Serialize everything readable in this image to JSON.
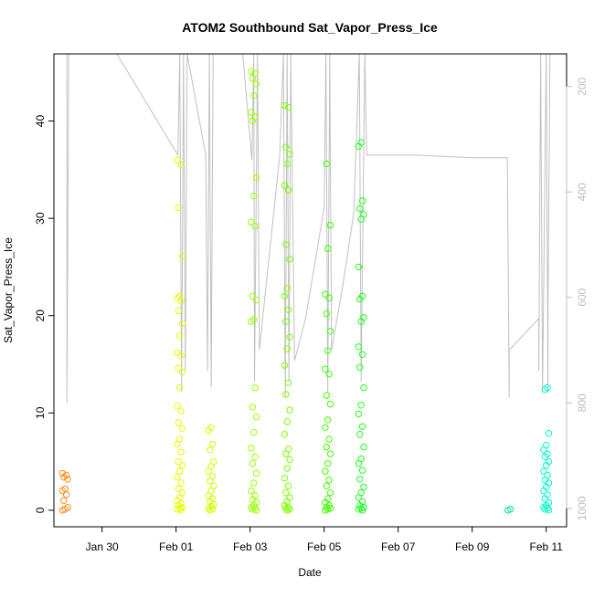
{
  "chart_data": {
    "type": "scatter",
    "title": "ATOM2 Southbound Sat_Vapor_Press_Ice",
    "xlabel": "Date",
    "ylabel": "Sat_Vapor_Press_Ice",
    "x_ticks": [
      "Jan 30",
      "Feb 01",
      "Feb 03",
      "Feb 05",
      "Feb 07",
      "Feb 09",
      "Feb 11"
    ],
    "x_tick_days": [
      30,
      32,
      34,
      36,
      38,
      40,
      42
    ],
    "xlim_days": [
      28.7,
      42.55
    ],
    "y_ticks": [
      0,
      10,
      20,
      30,
      40
    ],
    "ylim": [
      -1.7,
      46.9
    ],
    "right_axis": {
      "ticks": [
        200,
        400,
        600,
        800,
        1000
      ],
      "lim": [
        1035,
        138
      ],
      "color": "#bdbdbd"
    },
    "grid": false,
    "legend": "none",
    "clusters": [
      {
        "day": 29.0,
        "color": "#ff8c1a",
        "values": [
          0,
          0.1,
          0.3,
          1.0,
          1.6,
          2.0,
          2.2,
          3.2,
          3.4,
          3.6,
          3.8
        ]
      },
      {
        "day": 32.1,
        "color": "#e6ff00",
        "values": [
          0,
          0.1,
          0.2,
          0.3,
          0.5,
          0.7,
          1.0,
          1.3,
          1.8,
          2.2,
          2.8,
          3.4,
          4.0,
          4.6,
          5.0,
          6.0,
          6.8,
          7.3,
          8.4,
          9.0,
          10.2,
          10.7,
          12.6,
          14.2,
          14.6,
          15.9,
          16.2,
          17.9,
          19.2,
          20.5,
          21.5,
          21.8,
          22.0,
          26.1,
          31.1,
          35.5,
          36.0
        ]
      },
      {
        "day": 32.95,
        "color": "#d4ff00",
        "values": [
          0,
          0.1,
          0.2,
          0.4,
          0.6,
          0.9,
          1.2,
          1.5,
          2.0,
          2.5,
          3.0,
          3.5,
          4.0,
          4.5,
          5.0,
          6.2,
          6.8,
          8.2,
          8.5
        ]
      },
      {
        "day": 34.1,
        "color": "#9aff00",
        "values": [
          0,
          0.1,
          0.2,
          0.3,
          0.5,
          0.8,
          1.1,
          1.5,
          2.0,
          2.8,
          3.8,
          4.8,
          5.5,
          6.4,
          8.0,
          9.6,
          10.6,
          12.6,
          19.4,
          19.6,
          21.6,
          22.0,
          29.2,
          29.6,
          32.3,
          34.2,
          40.0,
          40.4,
          40.9,
          42.6,
          43.8,
          44.4,
          44.9,
          45.1
        ]
      },
      {
        "day": 35.0,
        "color": "#7aff00",
        "values": [
          0,
          0.1,
          0.2,
          0.3,
          0.5,
          0.9,
          1.3,
          1.8,
          2.5,
          3.3,
          4.3,
          5.2,
          5.8,
          6.3,
          7.8,
          9.1,
          10.3,
          11.9,
          13.1,
          14.9,
          16.6,
          17.8,
          19.4,
          20.6,
          22.0,
          22.8,
          25.8,
          27.3,
          32.9,
          33.4,
          35.6,
          36.6,
          37.3,
          41.4,
          41.6
        ]
      },
      {
        "day": 36.1,
        "color": "#40ff00",
        "values": [
          0,
          0.1,
          0.2,
          0.3,
          0.5,
          0.8,
          1.2,
          1.8,
          2.5,
          3.1,
          4.0,
          4.8,
          5.8,
          6.5,
          7.3,
          8.5,
          9.3,
          10.9,
          11.8,
          14.0,
          14.5,
          16.4,
          18.4,
          20.2,
          21.8,
          22.2,
          26.9,
          29.3,
          35.6
        ]
      },
      {
        "day": 37.0,
        "color": "#20ff20",
        "values": [
          0,
          0.1,
          0.2,
          0.3,
          0.5,
          0.9,
          1.3,
          1.8,
          2.4,
          3.2,
          4.1,
          4.8,
          5.3,
          6.5,
          7.8,
          8.6,
          9.9,
          10.8,
          12.6,
          14.7,
          16.0,
          16.8,
          19.4,
          19.8,
          21.7,
          22.0,
          25.0,
          29.9,
          30.4,
          31.0,
          31.8,
          37.4,
          37.8
        ]
      },
      {
        "day": 41.0,
        "color": "#00ee88",
        "values": [
          0,
          0.1
        ]
      },
      {
        "day": 42.0,
        "color": "#00ffcc",
        "values": [
          0,
          0.1,
          0.2,
          0.3,
          0.5,
          0.8,
          1.2,
          1.6,
          2.0,
          2.4,
          2.8,
          3.1,
          3.6,
          4.0,
          4.6,
          5.0,
          5.5,
          5.8,
          6.2,
          6.7,
          7.9,
          12.4,
          12.6
        ]
      }
    ],
    "pressure_trace": {
      "color": "#c0c0c0",
      "points": [
        [
          29.05,
          138
        ],
        [
          29.05,
          800
        ],
        [
          29.1,
          138
        ],
        [
          30.4,
          138
        ],
        [
          32.05,
          330
        ],
        [
          32.1,
          138
        ],
        [
          32.15,
          780
        ],
        [
          32.2,
          138
        ],
        [
          32.25,
          740
        ],
        [
          32.3,
          138
        ],
        [
          32.8,
          330
        ],
        [
          32.85,
          740
        ],
        [
          32.9,
          138
        ],
        [
          32.95,
          770
        ],
        [
          33.0,
          138
        ],
        [
          33.8,
          138
        ],
        [
          34.05,
          340
        ],
        [
          34.1,
          138
        ],
        [
          34.12,
          760
        ],
        [
          34.2,
          138
        ],
        [
          34.25,
          700
        ],
        [
          34.8,
          330
        ],
        [
          34.9,
          138
        ],
        [
          34.95,
          790
        ],
        [
          35.0,
          138
        ],
        [
          35.05,
          760
        ],
        [
          35.1,
          138
        ],
        [
          35.2,
          720
        ],
        [
          35.5,
          640
        ],
        [
          36.0,
          430
        ],
        [
          36.05,
          138
        ],
        [
          36.1,
          780
        ],
        [
          36.15,
          138
        ],
        [
          36.2,
          700
        ],
        [
          36.5,
          580
        ],
        [
          36.8,
          440
        ],
        [
          36.95,
          138
        ],
        [
          37.0,
          760
        ],
        [
          37.1,
          138
        ],
        [
          37.15,
          330
        ],
        [
          38.5,
          330
        ],
        [
          40.0,
          335
        ],
        [
          40.95,
          335
        ],
        [
          41.0,
          790
        ],
        [
          41.0,
          700
        ],
        [
          41.8,
          640
        ],
        [
          41.8,
          740
        ],
        [
          41.85,
          138
        ],
        [
          41.9,
          780
        ],
        [
          42.0,
          138
        ],
        [
          42.05,
          780
        ],
        [
          42.05,
          620
        ],
        [
          42.1,
          138
        ]
      ]
    }
  }
}
